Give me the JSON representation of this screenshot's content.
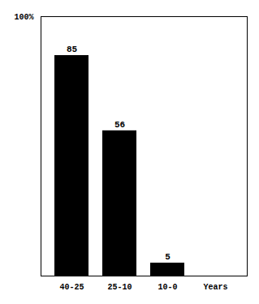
{
  "chart_data": {
    "type": "bar",
    "categories": [
      "40-25",
      "25-10",
      "10-0",
      "Years"
    ],
    "values": [
      85,
      56,
      5,
      null
    ],
    "color": "#000000",
    "ylim": [
      0,
      100
    ],
    "yticks": [
      {
        "value": 100,
        "label": "100%"
      }
    ],
    "grid": false,
    "data_labels": true
  }
}
